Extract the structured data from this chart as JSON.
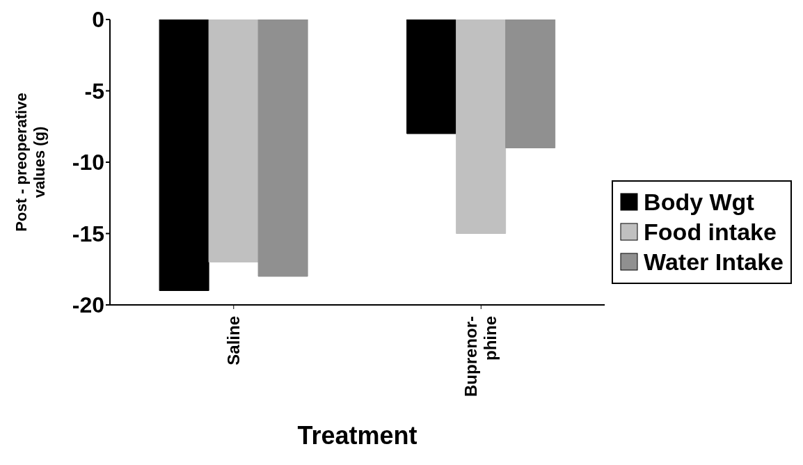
{
  "chart_data": {
    "type": "bar",
    "xlabel": "Treatment",
    "ylabel": "Post - preoperative values (g)",
    "categories": [
      "Saline",
      "Buprenor-phine"
    ],
    "series": [
      {
        "name": "Body Wgt",
        "color": "#000000",
        "values": [
          -19,
          -8
        ]
      },
      {
        "name": "Food intake",
        "color": "#c0c0c0",
        "values": [
          -17,
          -15
        ]
      },
      {
        "name": "Water Intake",
        "color": "#909090",
        "values": [
          -18,
          -9
        ]
      }
    ],
    "ylim": [
      -20,
      0
    ],
    "yticks": [
      -20,
      -15,
      -10,
      -5,
      0
    ],
    "grid": false,
    "legend": "right"
  }
}
